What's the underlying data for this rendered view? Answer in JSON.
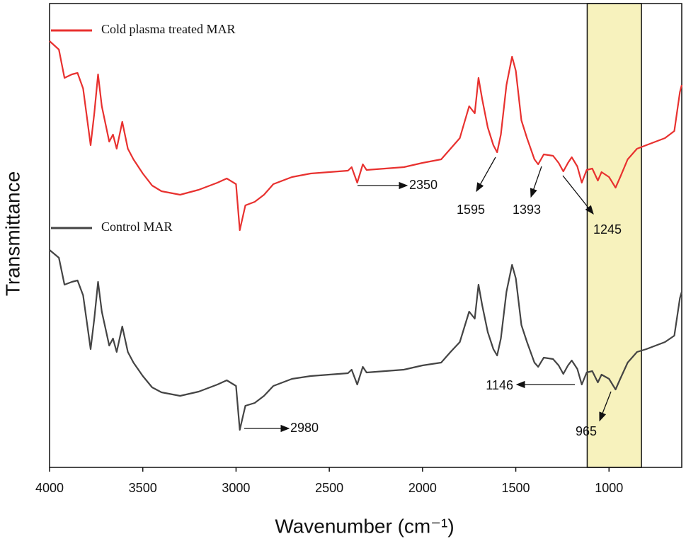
{
  "chart_data": {
    "type": "line",
    "x_label": "Wavenumber (cm⁻¹)",
    "y_label": "Transmittance",
    "xlim": [
      4000,
      610
    ],
    "ylim": [
      0,
      655
    ],
    "xticks": [
      4000,
      3500,
      3000,
      2500,
      2000,
      1500,
      1000
    ],
    "highlight": [
      1117,
      826
    ],
    "highlight_color": "#f7f2bd",
    "x": [
      4000,
      3950,
      3920,
      3880,
      3850,
      3820,
      3780,
      3760,
      3740,
      3720,
      3680,
      3660,
      3640,
      3610,
      3580,
      3550,
      3500,
      3450,
      3400,
      3300,
      3200,
      3100,
      3050,
      3000,
      2980,
      2950,
      2900,
      2850,
      2800,
      2700,
      2600,
      2500,
      2400,
      2380,
      2350,
      2320,
      2300,
      2200,
      2100,
      2000,
      1900,
      1850,
      1800,
      1750,
      1720,
      1700,
      1680,
      1650,
      1620,
      1600,
      1580,
      1550,
      1520,
      1500,
      1470,
      1440,
      1400,
      1380,
      1350,
      1300,
      1270,
      1245,
      1220,
      1200,
      1170,
      1146,
      1120,
      1090,
      1060,
      1040,
      1000,
      965,
      940,
      900,
      850,
      800,
      750,
      700,
      650,
      620,
      610
    ],
    "series": [
      {
        "name": "Cold plasma treated MAR",
        "color": "#e8312f",
        "values": [
          602,
          590,
          550,
          555,
          557,
          535,
          455,
          500,
          555,
          510,
          460,
          470,
          450,
          488,
          450,
          435,
          415,
          398,
          390,
          385,
          392,
          402,
          408,
          400,
          335,
          370,
          375,
          385,
          400,
          410,
          415,
          417,
          419,
          424,
          402,
          428,
          420,
          422,
          424,
          430,
          435,
          450,
          465,
          510,
          500,
          550,
          520,
          480,
          455,
          445,
          470,
          540,
          580,
          560,
          490,
          465,
          435,
          428,
          442,
          440,
          430,
          418,
          430,
          438,
          425,
          402,
          420,
          422,
          405,
          417,
          410,
          395,
          410,
          435,
          450,
          455,
          460,
          465,
          475,
          530,
          540
        ]
      },
      {
        "name": "Control MAR",
        "color": "#444444",
        "values": [
          307,
          296,
          258,
          262,
          264,
          243,
          167,
          210,
          262,
          220,
          172,
          182,
          163,
          199,
          163,
          148,
          129,
          113,
          106,
          101,
          107,
          117,
          123,
          115,
          53,
          87,
          91,
          101,
          115,
          125,
          129,
          131,
          133,
          138,
          117,
          142,
          134,
          136,
          138,
          144,
          148,
          163,
          177,
          220,
          210,
          258,
          229,
          191,
          167,
          158,
          182,
          248,
          286,
          267,
          201,
          177,
          148,
          142,
          155,
          153,
          144,
          132,
          144,
          151,
          139,
          117,
          134,
          136,
          120,
          131,
          125,
          110,
          125,
          148,
          163,
          167,
          172,
          177,
          186,
          239,
          248
        ]
      }
    ],
    "annotations": [
      "2350",
      "1595",
      "1393",
      "1245",
      "2980",
      "1146",
      "965"
    ]
  }
}
